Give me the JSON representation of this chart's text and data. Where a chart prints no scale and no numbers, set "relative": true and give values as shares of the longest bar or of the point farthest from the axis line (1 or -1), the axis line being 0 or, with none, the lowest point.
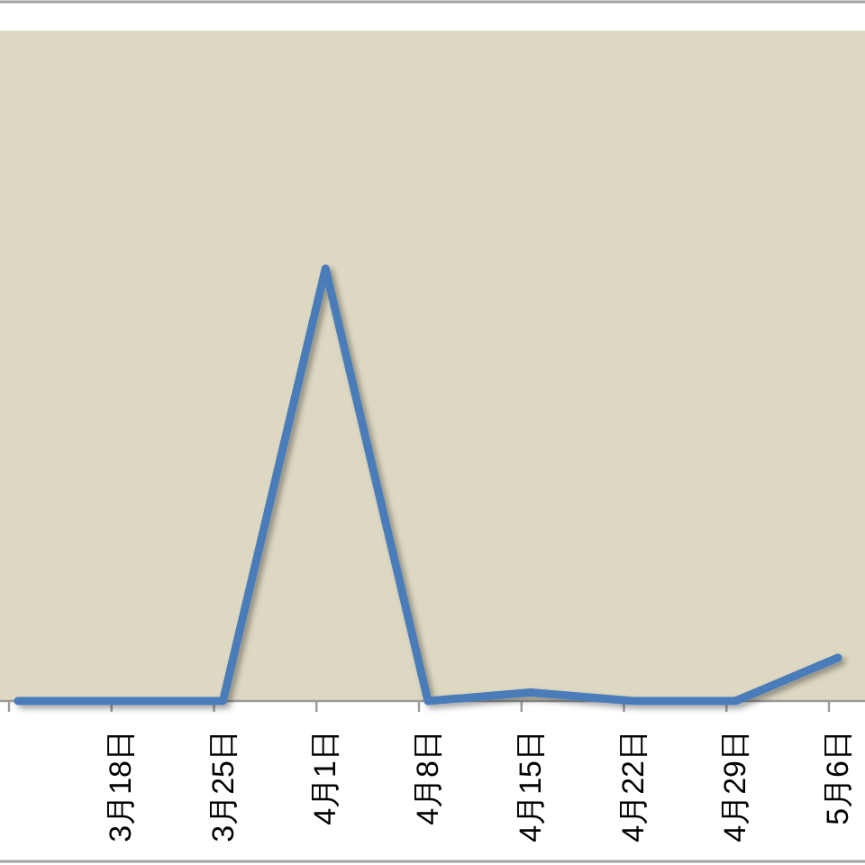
{
  "chart_data": {
    "type": "line",
    "relative": true,
    "line_style": "solid",
    "categories": [
      null,
      "3月18日",
      "3月25日",
      "4月1日",
      "4月8日",
      "4月15日",
      "4月22日",
      "4月29日",
      "5月6日"
    ],
    "series": [
      {
        "color": "#4a7cb8",
        "values": [
          0,
          0,
          0,
          1,
          0,
          0.02,
          0,
          0,
          0.1
        ]
      }
    ]
  }
}
